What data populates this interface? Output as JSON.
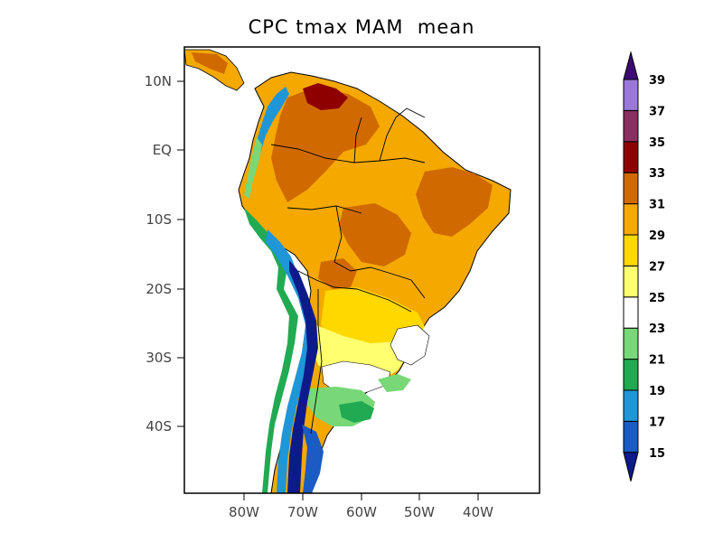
{
  "title": "CPC tmax MAM  mean",
  "lat_labels": [
    "10N",
    "EQ",
    "10S",
    "20S",
    "30S",
    "40S"
  ],
  "lon_labels": [
    "80W",
    "70W",
    "60W",
    "50W",
    "40W"
  ],
  "colorbar": {
    "labels": [
      "15",
      "17",
      "19",
      "21",
      "23",
      "25",
      "27",
      "29",
      "31",
      "33",
      "35",
      "37",
      "39"
    ],
    "colors": [
      "#1a5bc4",
      "#1e96d8",
      "#21aa52",
      "#78d878",
      "#ffffff",
      "#ffff70",
      "#ffd800",
      "#f4a800",
      "#d06a00",
      "#8e0000",
      "#8a3060",
      "#9a78da"
    ],
    "below_color": "#0c1a8c",
    "above_color": "#3c0a72"
  },
  "chart_data": {
    "type": "heatmap",
    "title": "CPC tmax MAM  mean",
    "variable": "tmax",
    "lat_ticks": [
      "10N",
      "EQ",
      "10S",
      "20S",
      "30S",
      "40S"
    ],
    "lon_ticks": [
      "80W",
      "70W",
      "60W",
      "50W",
      "40W"
    ],
    "xlim": [
      -90,
      -30
    ],
    "ylim": [
      -50,
      15
    ],
    "levels": [
      15,
      17,
      19,
      21,
      23,
      25,
      27,
      29,
      31,
      33,
      35,
      37,
      39
    ]
  }
}
